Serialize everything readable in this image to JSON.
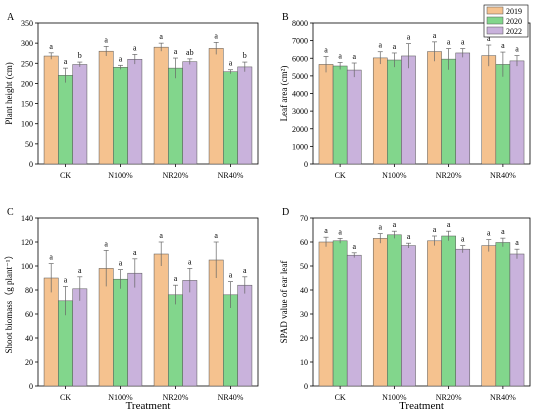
{
  "legend": [
    {
      "name": "2019",
      "color": "#f5c28f"
    },
    {
      "name": "2020",
      "color": "#82d68c"
    },
    {
      "name": "2022",
      "color": "#c9b2dc"
    }
  ],
  "chart_data": [
    {
      "type": "bar",
      "panel": "A",
      "categories": [
        "CK",
        "N100%",
        "NR20%",
        "NR40%"
      ],
      "xlabel": "",
      "ylabel": "Plant height (cm)",
      "ylim": [
        0,
        350
      ],
      "yticks": [
        0,
        50,
        100,
        150,
        200,
        250,
        300,
        350
      ],
      "series": [
        {
          "name": "2019",
          "values": [
            268,
            280,
            290,
            287
          ],
          "errors": [
            8,
            12,
            10,
            15
          ],
          "letters": [
            "a",
            "a",
            "a",
            "a"
          ]
        },
        {
          "name": "2020",
          "values": [
            220,
            240,
            238,
            229
          ],
          "errors": [
            18,
            5,
            25,
            5
          ],
          "letters": [
            "a",
            "a",
            "a",
            "a"
          ]
        },
        {
          "name": "2022",
          "values": [
            247,
            260,
            254,
            241
          ],
          "errors": [
            6,
            12,
            7,
            12
          ],
          "letters": [
            "b",
            "a",
            "ab",
            "b"
          ]
        }
      ]
    },
    {
      "type": "bar",
      "panel": "B",
      "categories": [
        "CK",
        "N100%",
        "NR20%",
        "NR40%"
      ],
      "xlabel": "",
      "ylabel": "Leaf area (cm²)",
      "ylim": [
        0,
        8000
      ],
      "yticks": [
        0,
        1000,
        2000,
        3000,
        4000,
        5000,
        6000,
        7000,
        8000
      ],
      "series": [
        {
          "name": "2019",
          "values": [
            5650,
            6020,
            6380,
            6150
          ],
          "errors": [
            450,
            350,
            550,
            600
          ],
          "letters": [
            "a",
            "a",
            "a",
            "a"
          ]
        },
        {
          "name": "2020",
          "values": [
            5560,
            5900,
            5950,
            5650
          ],
          "errors": [
            200,
            400,
            600,
            700
          ],
          "letters": [
            "a",
            "a",
            "a",
            "a"
          ]
        },
        {
          "name": "2022",
          "values": [
            5330,
            6130,
            6300,
            5850
          ],
          "errors": [
            400,
            700,
            250,
            300
          ],
          "letters": [
            "a",
            "a",
            "a",
            "a"
          ]
        }
      ]
    },
    {
      "type": "bar",
      "panel": "C",
      "categories": [
        "CK",
        "N100%",
        "NR20%",
        "NR40%"
      ],
      "xlabel": "Treatment",
      "ylabel": "Shoot biomass（g plant⁻¹）",
      "ylim": [
        0,
        140
      ],
      "yticks": [
        0,
        20,
        40,
        60,
        80,
        100,
        120,
        140
      ],
      "series": [
        {
          "name": "2019",
          "values": [
            90,
            98,
            110,
            105
          ],
          "errors": [
            12,
            15,
            10,
            15
          ],
          "letters": [
            "a",
            "a",
            "a",
            "a"
          ]
        },
        {
          "name": "2020",
          "values": [
            71,
            89,
            76,
            76
          ],
          "errors": [
            12,
            8,
            8,
            11
          ],
          "letters": [
            "a",
            "a",
            "a",
            "a"
          ]
        },
        {
          "name": "2022",
          "values": [
            81,
            94,
            88,
            84
          ],
          "errors": [
            10,
            12,
            10,
            7
          ],
          "letters": [
            "a",
            "a",
            "a",
            "a"
          ]
        }
      ]
    },
    {
      "type": "bar",
      "panel": "D",
      "categories": [
        "CK",
        "N100%",
        "NR20%",
        "NR40%"
      ],
      "xlabel": "Treatment",
      "ylabel": "SPAD value of ear leaf",
      "ylim": [
        0,
        70
      ],
      "yticks": [
        0,
        10,
        20,
        30,
        40,
        50,
        60,
        70
      ],
      "series": [
        {
          "name": "2019",
          "values": [
            60,
            61.5,
            60.5,
            58.5
          ],
          "errors": [
            2,
            2,
            2,
            2.5
          ],
          "letters": [
            "a",
            "a",
            "a",
            "a"
          ]
        },
        {
          "name": "2020",
          "values": [
            60.5,
            63,
            62.5,
            59.8
          ],
          "errors": [
            1,
            1.5,
            2,
            1.8
          ],
          "letters": [
            "a",
            "a",
            "a",
            "a"
          ]
        },
        {
          "name": "2022",
          "values": [
            54.5,
            58.5,
            57,
            55
          ],
          "errors": [
            1,
            1,
            1.5,
            2
          ],
          "letters": [
            "a",
            "a",
            "a",
            "a"
          ]
        }
      ]
    }
  ]
}
